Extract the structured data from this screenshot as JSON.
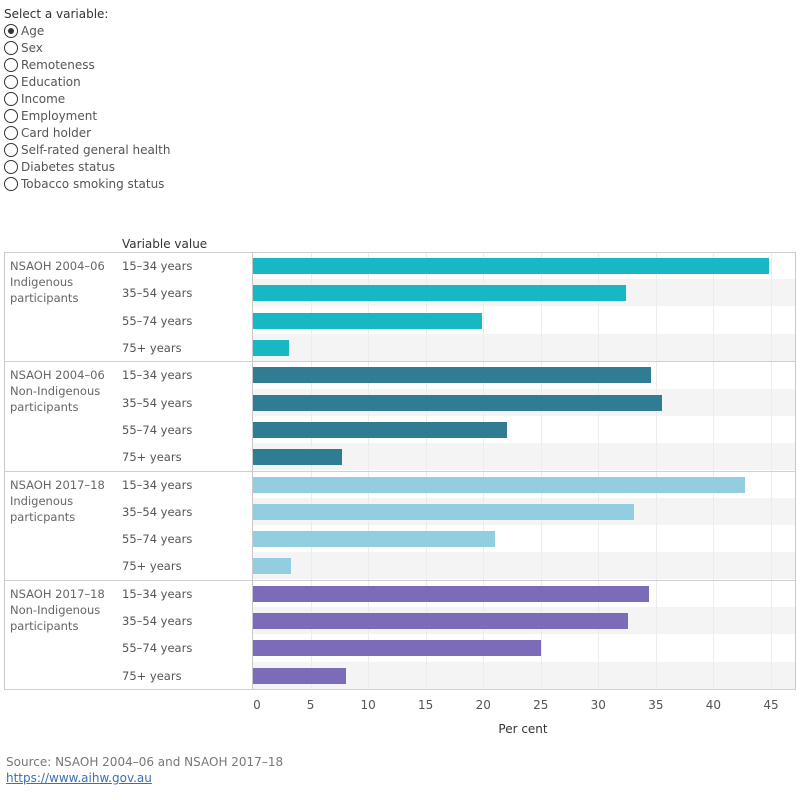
{
  "control": {
    "title": "Select a variable:",
    "selected": "Age",
    "options": [
      "Age",
      "Sex",
      "Remoteness",
      "Education",
      "Income",
      "Employment",
      "Card holder",
      "Self-rated general health",
      "Diabetes status",
      "Tobacco smoking status"
    ]
  },
  "chart_data": {
    "type": "bar",
    "orientation": "horizontal",
    "row_header": "Variable value",
    "categories": [
      "15–34 years",
      "35–54 years",
      "55–74 years",
      "75+ years"
    ],
    "series": [
      {
        "name": "NSAOH 2004–06\nIndigenous\nparticipants",
        "color": "#17b8c4",
        "values": [
          44.8,
          32.4,
          19.9,
          3.1
        ]
      },
      {
        "name": "NSAOH 2004–06\nNon-Indigenous\nparticipants",
        "color": "#2e7d93",
        "values": [
          34.6,
          35.5,
          22.1,
          7.7
        ]
      },
      {
        "name": "NSAOH 2017–18\nIndigenous\nparticpants",
        "color": "#93cde0",
        "values": [
          42.7,
          33.1,
          21.0,
          3.3
        ]
      },
      {
        "name": "NSAOH 2017–18\nNon-Indigenous\nparticipants",
        "color": "#7b6bb9",
        "values": [
          34.4,
          32.6,
          25.0,
          8.1
        ]
      }
    ],
    "xlabel": "Per cent",
    "xlim": [
      0,
      47
    ],
    "xticks": [
      0,
      5,
      10,
      15,
      20,
      25,
      30,
      35,
      40,
      45
    ],
    "grid": true
  },
  "footer": {
    "source": "Source: NSAOH 2004–06 and NSAOH 2017–18",
    "link": "https://www.aihw.gov.au"
  }
}
